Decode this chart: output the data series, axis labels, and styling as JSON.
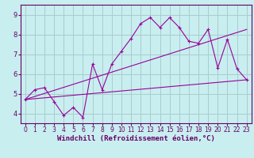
{
  "xlabel": "Windchill (Refroidissement éolien,°C)",
  "bg_color": "#c8eef0",
  "line_color": "#990099",
  "grid_color": "#aacccc",
  "axis_color": "#660066",
  "spine_color": "#660066",
  "xlim": [
    -0.5,
    23.5
  ],
  "ylim": [
    3.5,
    9.5
  ],
  "xticks": [
    0,
    1,
    2,
    3,
    4,
    5,
    6,
    7,
    8,
    9,
    10,
    11,
    12,
    13,
    14,
    15,
    16,
    17,
    18,
    19,
    20,
    21,
    22,
    23
  ],
  "yticks": [
    4,
    5,
    6,
    7,
    8,
    9
  ],
  "line1_x": [
    0,
    1,
    2,
    3,
    4,
    5,
    6,
    7,
    8,
    9,
    10,
    11,
    12,
    13,
    14,
    15,
    16,
    17,
    18,
    19,
    20,
    21,
    22,
    23
  ],
  "line1_y": [
    4.7,
    5.2,
    5.3,
    4.6,
    3.9,
    4.3,
    3.8,
    6.5,
    5.2,
    6.5,
    7.15,
    7.8,
    8.55,
    8.85,
    8.35,
    8.85,
    8.35,
    7.65,
    7.55,
    8.25,
    6.3,
    7.75,
    6.25,
    5.7
  ],
  "line2_x": [
    0,
    23
  ],
  "line2_y": [
    4.7,
    8.25
  ],
  "line3_x": [
    0,
    23
  ],
  "line3_y": [
    4.7,
    5.7
  ],
  "xlabel_fontsize": 6.5,
  "tick_fontsize": 5.5
}
